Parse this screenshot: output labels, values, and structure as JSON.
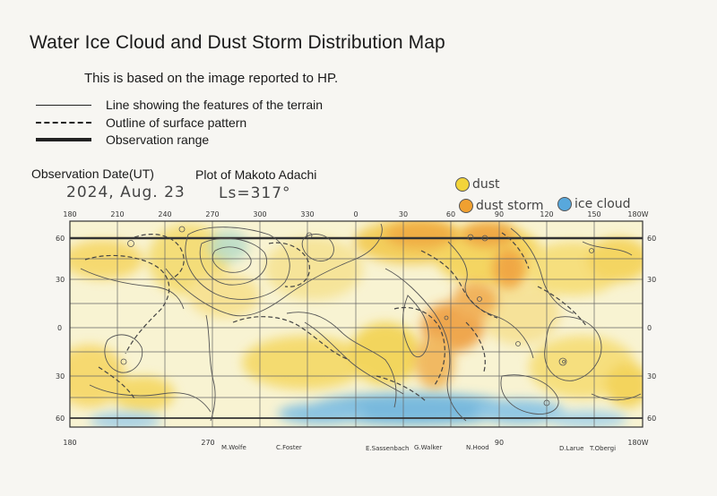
{
  "title": "Water Ice Cloud and Dust Storm Distribution Map",
  "subtitle": "This is based on the image reported to HP.",
  "legend": [
    {
      "style": "thin-solid",
      "label": "Line showing the features of the terrain"
    },
    {
      "style": "dashed",
      "label": "Outline of surface pattern"
    },
    {
      "style": "thick-solid",
      "label": "Observation range"
    }
  ],
  "observation": {
    "date_label": "Observation Date(UT)",
    "date_value": "2024, Aug. 23",
    "plot_label": "Plot of Makoto Adachi",
    "ls_value": "Ls=317°"
  },
  "key": {
    "dust": {
      "label": "dust",
      "color": "#f2d43a"
    },
    "dust_storm": {
      "label": "dust storm",
      "color": "#f0a030"
    },
    "ice_cloud": {
      "label": "ice cloud",
      "color": "#58a8dc"
    }
  },
  "map": {
    "top_longitude_ticks": [
      "180",
      "210",
      "240",
      "270",
      "300",
      "330",
      "0",
      "30",
      "60",
      "90",
      "120",
      "150",
      "180W"
    ],
    "bottom_longitude_ticks": [
      "180",
      "270",
      "90",
      "180W"
    ],
    "left_latitude_ticks": [
      "60",
      "30",
      "0",
      "30",
      "60"
    ],
    "right_latitude_ticks": [
      "60",
      "30",
      "0",
      "30",
      "60"
    ],
    "feature_labels": [
      "M.Wolfe",
      "C.Foster",
      "E.Sassenbach",
      "G.Walker",
      "N.Hood",
      "D.Larue",
      "T.Obergi"
    ]
  }
}
